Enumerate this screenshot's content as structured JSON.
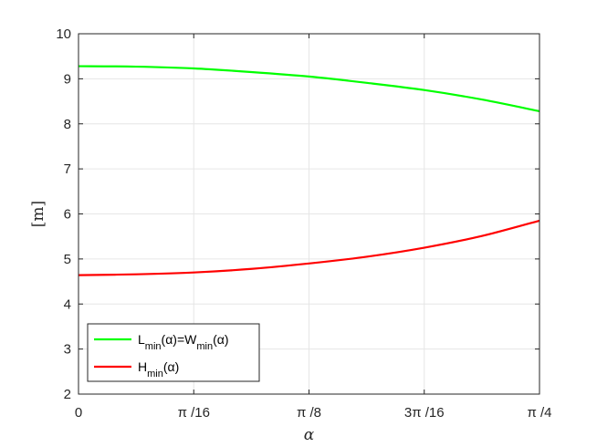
{
  "chart_data": {
    "type": "line",
    "title": "",
    "xlabel": "α",
    "ylabel": "[m]",
    "xlim": [
      0,
      0.7853981634
    ],
    "ylim": [
      2,
      10
    ],
    "yticks": [
      2,
      3,
      4,
      5,
      6,
      7,
      8,
      9,
      10
    ],
    "xticks": [
      {
        "value": 0,
        "label": "0"
      },
      {
        "value": 0.1963495408,
        "label": "π /16"
      },
      {
        "value": 0.3926990817,
        "label": "π /8"
      },
      {
        "value": 0.5890486225,
        "label": "3π /16"
      },
      {
        "value": 0.7853981634,
        "label": "π /4"
      }
    ],
    "grid": true,
    "legend_position": "bottom-left",
    "series": [
      {
        "name": "L_min(α)=W_min(α)",
        "color": "#00ff00",
        "x": [
          0,
          0.0982,
          0.1963,
          0.2945,
          0.3927,
          0.4909,
          0.589,
          0.6872,
          0.7854
        ],
        "y": [
          9.28,
          9.27,
          9.23,
          9.15,
          9.05,
          8.91,
          8.75,
          8.54,
          8.28
        ]
      },
      {
        "name": "H_min(α)",
        "color": "#ff0000",
        "x": [
          0,
          0.0982,
          0.1963,
          0.2945,
          0.3927,
          0.4909,
          0.589,
          0.6872,
          0.7854
        ],
        "y": [
          4.64,
          4.66,
          4.7,
          4.78,
          4.9,
          5.05,
          5.25,
          5.51,
          5.85
        ]
      }
    ]
  }
}
